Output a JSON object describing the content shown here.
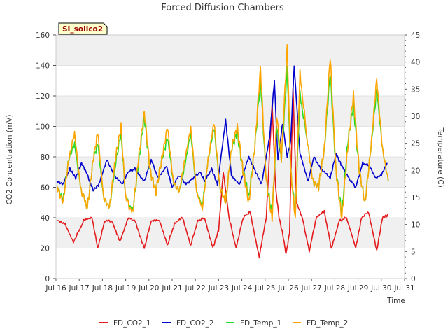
{
  "chart_data": {
    "type": "line",
    "title": "Forced Diffusion Chambers",
    "site_label": "SI_soilco2",
    "xlabel": "Time",
    "ylabel_left": "CO2 Concentration (mV)",
    "ylabel_right": "Temperature (C)",
    "xlim": [
      16,
      31
    ],
    "ylim_left": [
      0,
      160
    ],
    "ylim_right": [
      0,
      45
    ],
    "x_ticks": [
      16,
      17,
      18,
      19,
      20,
      21,
      22,
      23,
      24,
      25,
      26,
      27,
      28,
      29,
      30,
      31
    ],
    "x_tick_labels": [
      "Jul 16",
      "Jul 17",
      "Jul 18",
      "Jul 19",
      "Jul 20",
      "Jul 21",
      "Jul 22",
      "Jul 23",
      "Jul 24",
      "Jul 25",
      "Jul 26",
      "Jul 27",
      "Jul 28",
      "Jul 29",
      "Jul 30",
      "Jul 31"
    ],
    "y_left_ticks": [
      0,
      20,
      40,
      60,
      80,
      100,
      120,
      140,
      160
    ],
    "y_right_ticks": [
      0,
      5,
      10,
      15,
      20,
      25,
      30,
      35,
      40,
      45
    ],
    "grid": true,
    "legend_position": "bottom",
    "series": [
      {
        "name": "FD_CO2_1",
        "color": "#e41a1c",
        "axis": "left",
        "x": [
          16.05,
          16.4,
          16.75,
          17.2,
          17.55,
          17.8,
          18.1,
          18.4,
          18.75,
          19.1,
          19.4,
          19.8,
          20.1,
          20.45,
          20.8,
          21.1,
          21.45,
          21.8,
          22.1,
          22.4,
          22.75,
          23.0,
          23.2,
          23.45,
          23.75,
          24.05,
          24.35,
          24.75,
          24.9,
          25.05,
          25.3,
          25.45,
          25.6,
          25.75,
          25.9,
          26.05,
          26.2,
          26.35,
          26.6,
          26.9,
          27.2,
          27.55,
          27.85,
          28.2,
          28.5,
          28.9,
          29.15,
          29.45,
          29.8,
          30.05,
          30.3
        ],
        "values": [
          38,
          36,
          24,
          38,
          40,
          20,
          38,
          38,
          24,
          40,
          38,
          20,
          38,
          38,
          22,
          36,
          40,
          22,
          38,
          40,
          20,
          32,
          70,
          40,
          20,
          40,
          44,
          14,
          28,
          40,
          115,
          60,
          40,
          30,
          16,
          30,
          125,
          50,
          40,
          18,
          40,
          44,
          20,
          38,
          40,
          20,
          40,
          44,
          18,
          40,
          42
        ]
      },
      {
        "name": "FD_CO2_2",
        "color": "#0000cc",
        "axis": "left",
        "x": [
          16.05,
          16.3,
          16.6,
          16.85,
          17.1,
          17.3,
          17.6,
          17.85,
          18.2,
          18.5,
          18.85,
          19.1,
          19.4,
          19.8,
          20.1,
          20.4,
          20.75,
          21.0,
          21.3,
          21.6,
          21.9,
          22.2,
          22.4,
          22.7,
          22.95,
          23.3,
          23.55,
          23.9,
          24.3,
          24.6,
          24.85,
          25.2,
          25.4,
          25.55,
          25.75,
          25.95,
          26.1,
          26.25,
          26.5,
          26.85,
          27.1,
          27.4,
          27.8,
          28.05,
          28.3,
          28.6,
          28.9,
          29.2,
          29.5,
          29.75,
          30.0,
          30.25
        ],
        "values": [
          64,
          62,
          72,
          66,
          76,
          70,
          58,
          62,
          78,
          68,
          62,
          70,
          72,
          64,
          78,
          66,
          74,
          60,
          68,
          62,
          66,
          70,
          64,
          72,
          62,
          104,
          68,
          62,
          80,
          70,
          62,
          94,
          130,
          78,
          102,
          80,
          90,
          140,
          82,
          64,
          80,
          72,
          66,
          82,
          74,
          66,
          60,
          76,
          74,
          66,
          68,
          76
        ]
      },
      {
        "name": "FD_Temp_1",
        "color": "#22dd22",
        "axis": "right",
        "x": [
          16.05,
          16.3,
          16.55,
          16.8,
          17.05,
          17.35,
          17.6,
          17.8,
          18.05,
          18.3,
          18.55,
          18.8,
          19.0,
          19.3,
          19.55,
          19.8,
          20.05,
          20.3,
          20.55,
          20.8,
          21.05,
          21.3,
          21.55,
          21.8,
          22.05,
          22.3,
          22.55,
          22.8,
          23.05,
          23.3,
          23.55,
          23.8,
          24.05,
          24.3,
          24.55,
          24.8,
          25.05,
          25.3,
          25.5,
          25.7,
          25.95,
          26.1,
          26.3,
          26.5,
          26.8,
          27.05,
          27.3,
          27.55,
          27.8,
          28.05,
          28.3,
          28.55,
          28.8,
          29.05,
          29.3,
          29.55,
          29.8,
          30.05,
          30.3
        ],
        "values": [
          17,
          14.5,
          22,
          25,
          17,
          13,
          22,
          25,
          15,
          13,
          21,
          27,
          15,
          12.5,
          21,
          30,
          20,
          16,
          22,
          26,
          18,
          16,
          21,
          27,
          16,
          13.5,
          22,
          28,
          17,
          14,
          24,
          27,
          20,
          15,
          24,
          37,
          18,
          12,
          28,
          22,
          39,
          20,
          12,
          34,
          26,
          18,
          17,
          24,
          38,
          20,
          12,
          25,
          32,
          20,
          14,
          24,
          35,
          24,
          18
        ]
      },
      {
        "name": "FD_Temp_2",
        "color": "#ffa500",
        "axis": "right",
        "x": [
          16.05,
          16.3,
          16.55,
          16.8,
          17.05,
          17.35,
          17.6,
          17.8,
          18.05,
          18.3,
          18.55,
          18.8,
          19.0,
          19.3,
          19.55,
          19.8,
          20.05,
          20.3,
          20.55,
          20.8,
          21.05,
          21.3,
          21.55,
          21.8,
          22.05,
          22.3,
          22.55,
          22.8,
          23.05,
          23.3,
          23.55,
          23.8,
          24.05,
          24.3,
          24.55,
          24.8,
          25.05,
          25.3,
          25.5,
          25.7,
          25.95,
          26.1,
          26.3,
          26.5,
          26.8,
          27.05,
          27.3,
          27.55,
          27.8,
          28.05,
          28.3,
          28.55,
          28.8,
          29.05,
          29.3,
          29.55,
          29.8,
          30.05,
          30.3
        ],
        "values": [
          17,
          14,
          22,
          27,
          17,
          13,
          22,
          27,
          15,
          13,
          22,
          28,
          15,
          12,
          22,
          31,
          20,
          16,
          22,
          28,
          18,
          16,
          22,
          28,
          16,
          13,
          22,
          29,
          17,
          14,
          24,
          28,
          20,
          14,
          24,
          39,
          18,
          11,
          30,
          22,
          43,
          20,
          11,
          38,
          26,
          18,
          17,
          24,
          41,
          20,
          11,
          24,
          34,
          20,
          14,
          24,
          37,
          24,
          18
        ]
      }
    ]
  }
}
